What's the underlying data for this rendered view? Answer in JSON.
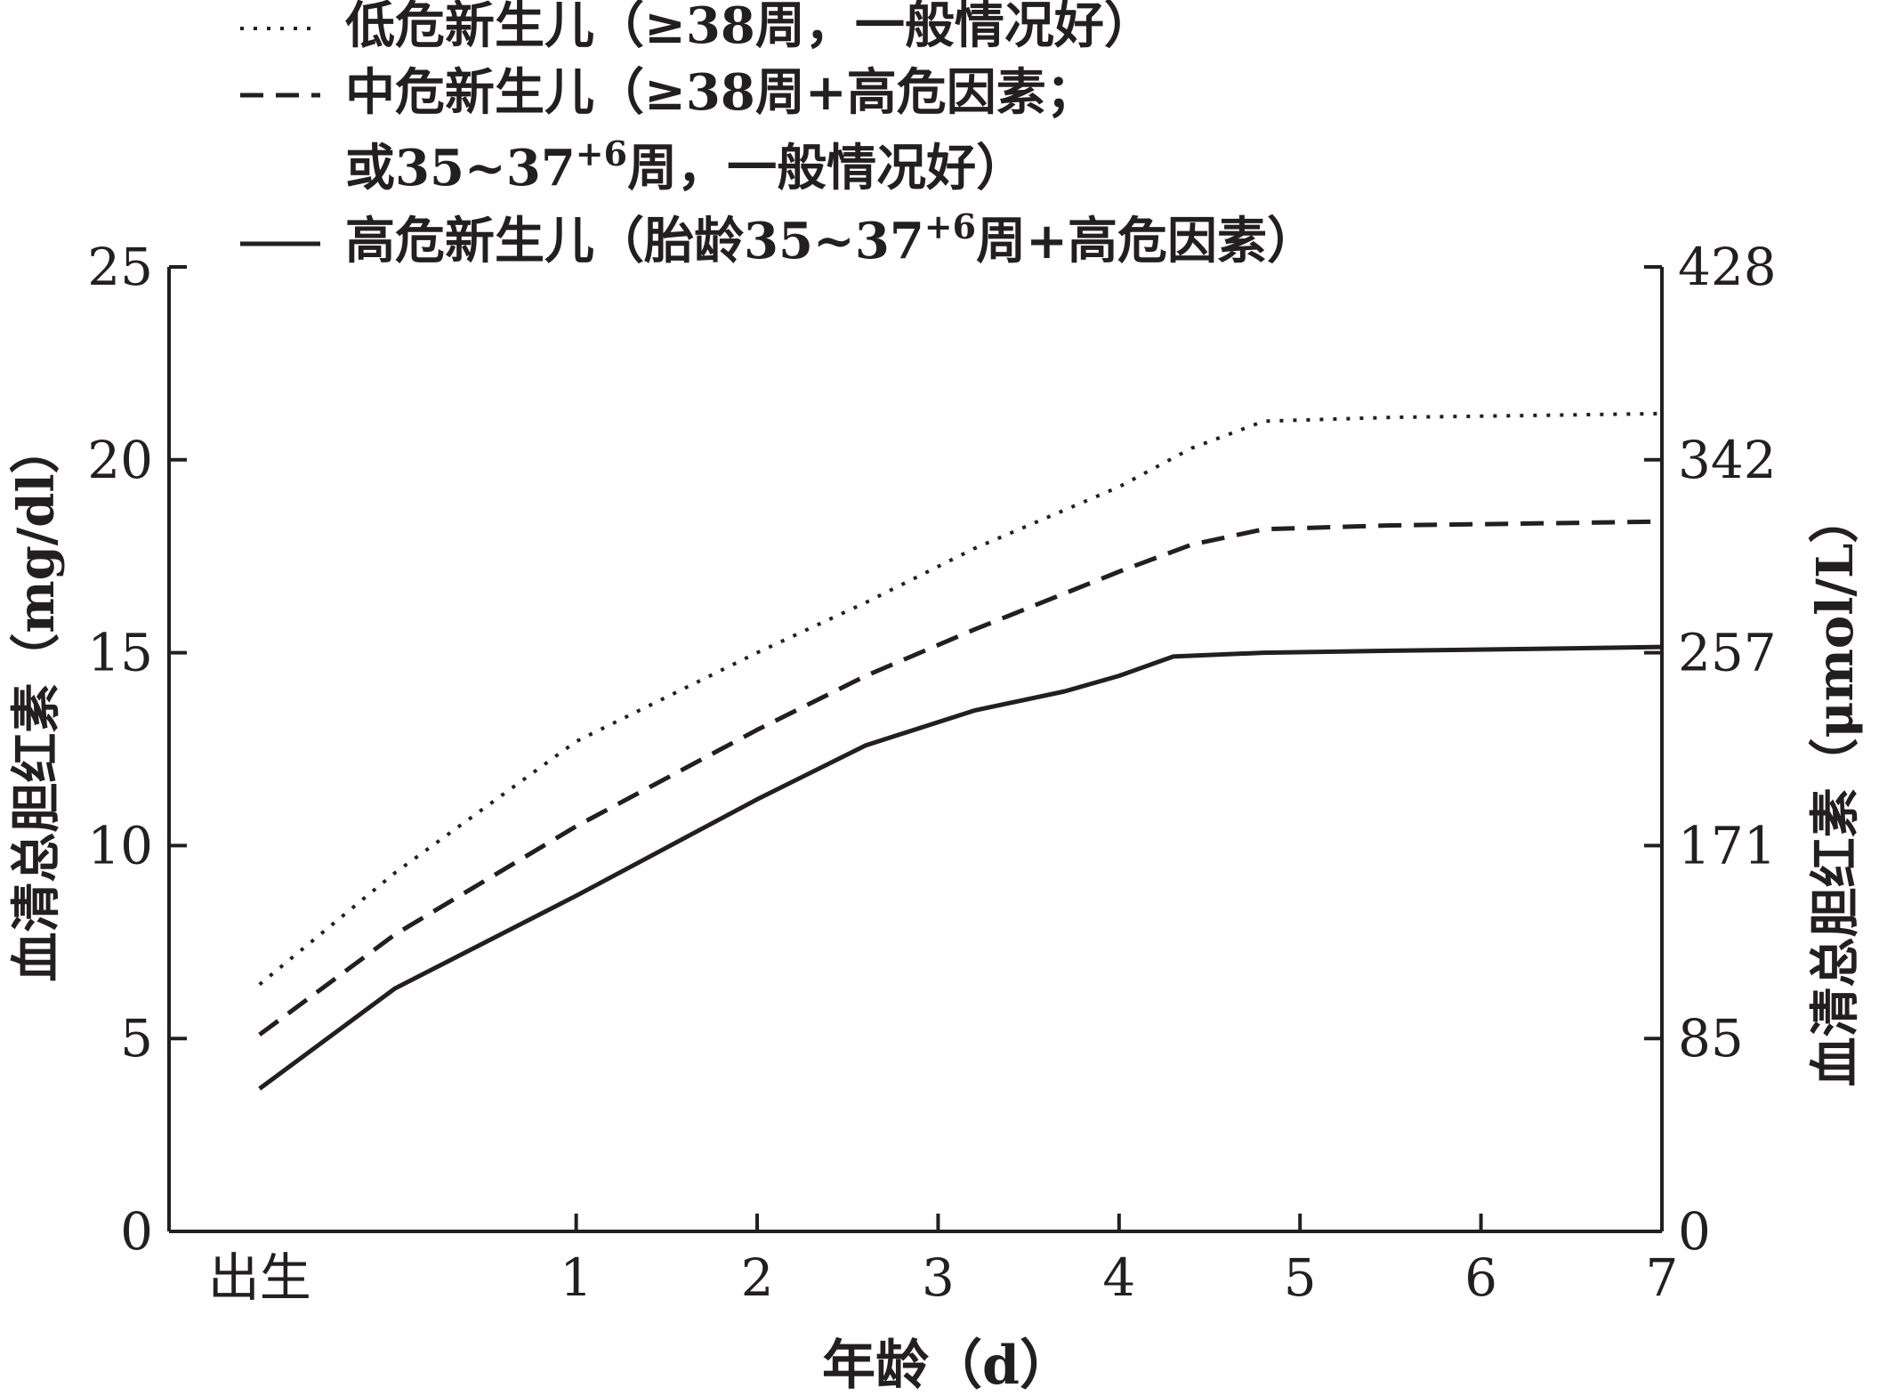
{
  "chart_data": {
    "type": "line",
    "title": "",
    "xlabel": "年龄（d）",
    "ylabel": "血清总胆红素（mg/dl）",
    "ylabel_right": "血清总胆红素（μmol/L）",
    "xlim": [
      -1.25,
      7
    ],
    "ylim": [
      0,
      25
    ],
    "x_ticks": [
      {
        "value": -0.75,
        "label": "出生"
      },
      {
        "value": 1,
        "label": "1"
      },
      {
        "value": 2,
        "label": "2"
      },
      {
        "value": 3,
        "label": "3"
      },
      {
        "value": 4,
        "label": "4"
      },
      {
        "value": 5,
        "label": "5"
      },
      {
        "value": 6,
        "label": "6"
      },
      {
        "value": 7,
        "label": "7"
      }
    ],
    "y_ticks": [
      0,
      5,
      10,
      15,
      20,
      25
    ],
    "y_right_ticks": [
      {
        "value": 0,
        "label": "0"
      },
      {
        "value": 5,
        "label": "85"
      },
      {
        "value": 10,
        "label": "171"
      },
      {
        "value": 15,
        "label": "257"
      },
      {
        "value": 20,
        "label": "342"
      },
      {
        "value": 25,
        "label": "428"
      }
    ],
    "grid": false,
    "legend_position": "top-left",
    "series": [
      {
        "name": "低危新生儿（≥38周，一般情况好）",
        "style": "dotted",
        "color": "#231f20",
        "x": [
          -0.75,
          0,
          1,
          2,
          2.6,
          3.2,
          4.0,
          4.4,
          4.8,
          5.5,
          6.3,
          7.0
        ],
        "y": [
          6.4,
          9.3,
          12.7,
          15.0,
          16.3,
          17.7,
          19.3,
          20.3,
          21.0,
          21.1,
          21.15,
          21.2
        ]
      },
      {
        "name": "中危新生儿（≥38周+高危因素；或35~37+6周，一般情况好）",
        "style": "dashed",
        "color": "#231f20",
        "x": [
          -0.75,
          0,
          1,
          2,
          2.6,
          3.2,
          4.0,
          4.4,
          4.8,
          5.5,
          6.3,
          7.0
        ],
        "y": [
          5.1,
          7.7,
          10.5,
          13.0,
          14.4,
          15.6,
          17.1,
          17.8,
          18.2,
          18.3,
          18.35,
          18.4
        ]
      },
      {
        "name": "高危新生儿（胎龄35~37+6周+高危因素）",
        "style": "solid",
        "color": "#231f20",
        "x": [
          -0.75,
          0,
          1,
          2,
          2.6,
          3.2,
          3.7,
          4.0,
          4.3,
          4.8,
          5.5,
          6.3,
          7.0
        ],
        "y": [
          3.7,
          6.3,
          8.7,
          11.2,
          12.6,
          13.5,
          14.0,
          14.4,
          14.9,
          15.0,
          15.05,
          15.1,
          15.15
        ]
      }
    ]
  }
}
